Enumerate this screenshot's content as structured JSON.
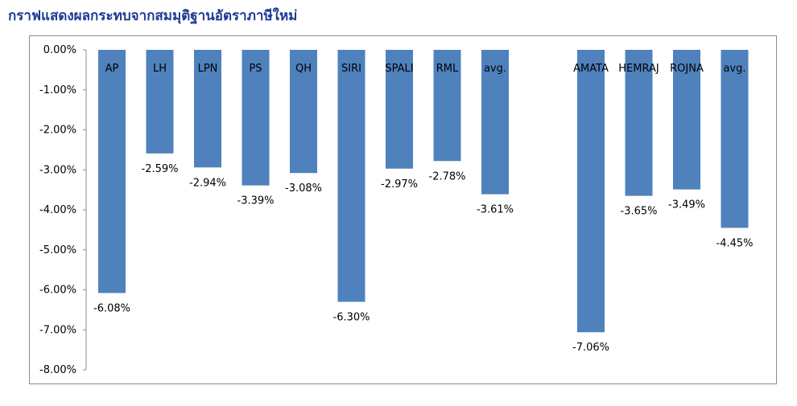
{
  "chart_data": {
    "type": "bar",
    "title": "กราฟแสดงผลกระทบจากสมมุติฐานอัตราภาษีใหม่",
    "categories": [
      "AP",
      "LH",
      "LPN",
      "PS",
      "QH",
      "SIRI",
      "SPALI",
      "RML",
      "avg.",
      "AMATA",
      "HEMRAJ",
      "ROJNA",
      "avg."
    ],
    "values": [
      -6.08,
      -2.59,
      -2.94,
      -3.39,
      -3.08,
      -6.3,
      -2.97,
      -2.78,
      -3.61,
      -7.06,
      -3.65,
      -3.49,
      -4.45
    ],
    "value_labels": [
      "-6.08%",
      "-2.59%",
      "-2.94%",
      "-3.39%",
      "-3.08%",
      "-6.30%",
      "-2.97%",
      "-2.78%",
      "-3.61%",
      "-7.06%",
      "-3.65%",
      "-3.49%",
      "-4.45%"
    ],
    "slot_positions": [
      0,
      1,
      2,
      3,
      4,
      5,
      6,
      7,
      8,
      10,
      11,
      12,
      13
    ],
    "ylim": [
      -8,
      0
    ],
    "yticks": [
      "0.00%",
      "-1.00%",
      "-2.00%",
      "-3.00%",
      "-4.00%",
      "-5.00%",
      "-6.00%",
      "-7.00%",
      "-8.00%"
    ],
    "xlabel": "",
    "ylabel": "",
    "grid": false,
    "legend": "none",
    "bar_color": "#4f81bd"
  }
}
